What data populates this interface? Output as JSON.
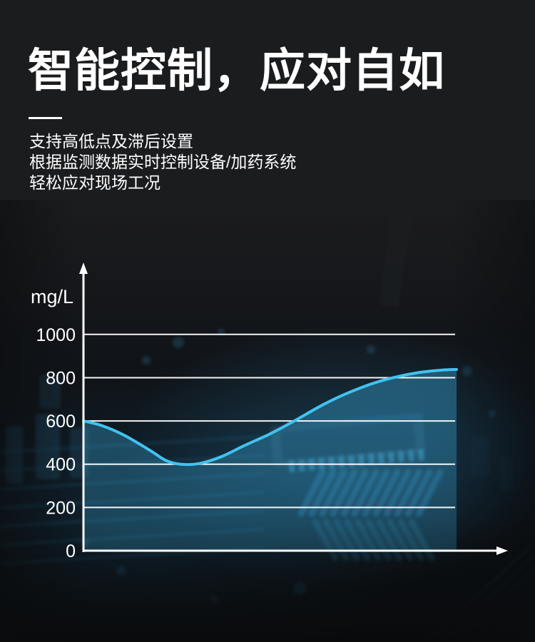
{
  "header": {
    "title": "智能控制，应对自如",
    "lines": [
      "支持高低点及滞后设置",
      "根据监测数据实时控制设备/加药系统",
      "轻松应对现场工况"
    ]
  },
  "chart_data": {
    "type": "area",
    "title": "",
    "xlabel": "",
    "ylabel": "mg/L",
    "yticks": [
      0,
      200,
      400,
      600,
      800,
      1000
    ],
    "ylim": [
      0,
      1100
    ],
    "xlim": [
      0,
      1
    ],
    "grid": true,
    "legend": false,
    "points": [
      {
        "x": 0.0,
        "v": 600
      },
      {
        "x": 0.05,
        "v": 578
      },
      {
        "x": 0.11,
        "v": 533
      },
      {
        "x": 0.18,
        "v": 462
      },
      {
        "x": 0.22,
        "v": 418
      },
      {
        "x": 0.26,
        "v": 400
      },
      {
        "x": 0.31,
        "v": 403
      },
      {
        "x": 0.37,
        "v": 435
      },
      {
        "x": 0.43,
        "v": 485
      },
      {
        "x": 0.5,
        "v": 540
      },
      {
        "x": 0.56,
        "v": 595
      },
      {
        "x": 0.64,
        "v": 673
      },
      {
        "x": 0.7,
        "v": 723
      },
      {
        "x": 0.77,
        "v": 770
      },
      {
        "x": 0.83,
        "v": 800
      },
      {
        "x": 0.9,
        "v": 824
      },
      {
        "x": 0.96,
        "v": 835
      },
      {
        "x": 1.0,
        "v": 838
      }
    ],
    "line_color": "#41c3f0",
    "fill_color": "#3db4e8",
    "axis_color": "#ffffff",
    "tick_label_color": "#ffffff"
  },
  "colors": {
    "background": "#1b1c1e",
    "text": "#ffffff",
    "accent_cyan": "#41c3f0"
  }
}
